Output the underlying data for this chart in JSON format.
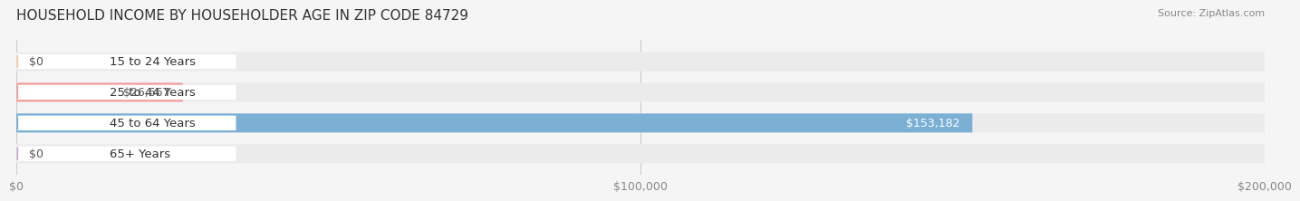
{
  "title": "HOUSEHOLD INCOME BY HOUSEHOLDER AGE IN ZIP CODE 84729",
  "source": "Source: ZipAtlas.com",
  "categories": [
    "15 to 24 Years",
    "25 to 44 Years",
    "45 to 64 Years",
    "65+ Years"
  ],
  "values": [
    0,
    26667,
    153182,
    0
  ],
  "bar_colors": [
    "#f5c897",
    "#f0a0a0",
    "#7bafd4",
    "#c9a8d4"
  ],
  "label_colors": [
    "#555555",
    "#555555",
    "#ffffff",
    "#555555"
  ],
  "xlim": [
    0,
    200000
  ],
  "xticks": [
    0,
    100000,
    200000
  ],
  "xtick_labels": [
    "$0",
    "$100,000",
    "$200,000"
  ],
  "background_color": "#f5f5f5",
  "bar_background_color": "#ebebeb",
  "title_fontsize": 11,
  "source_fontsize": 8,
  "label_fontsize": 9,
  "tick_fontsize": 9,
  "cat_fontsize": 9.5,
  "bar_height": 0.62,
  "value_format_prefix": "$"
}
